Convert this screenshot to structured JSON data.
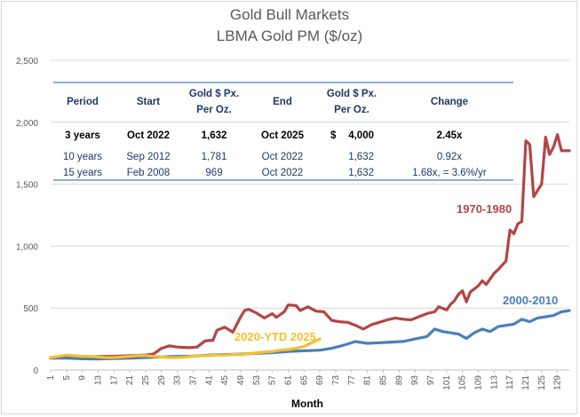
{
  "chart_data": {
    "type": "line",
    "title": "Gold Bull Markets",
    "subtitle": "LBMA Gold PM ($/oz)",
    "xlabel": "Month",
    "ylabel": "",
    "xlim": [
      1,
      132
    ],
    "ylim": [
      0,
      2500
    ],
    "y_ticks": [
      "0",
      "500",
      "1,000",
      "1,500",
      "2,000",
      "2,500"
    ],
    "x_ticks": [
      "1",
      "5",
      "9",
      "13",
      "17",
      "21",
      "25",
      "29",
      "33",
      "37",
      "41",
      "45",
      "49",
      "53",
      "57",
      "61",
      "65",
      "69",
      "73",
      "77",
      "81",
      "85",
      "89",
      "93",
      "97",
      "101",
      "105",
      "109",
      "113",
      "117",
      "121",
      "125",
      "129"
    ],
    "grid": "horizontal",
    "series": [
      {
        "name": "1970-1980",
        "label": "1970-1980",
        "color": "#b34545",
        "points": [
          [
            1,
            100
          ],
          [
            5,
            103
          ],
          [
            9,
            106
          ],
          [
            13,
            108
          ],
          [
            17,
            110
          ],
          [
            21,
            115
          ],
          [
            25,
            120
          ],
          [
            27,
            130
          ],
          [
            29,
            175
          ],
          [
            31,
            195
          ],
          [
            33,
            185
          ],
          [
            36,
            180
          ],
          [
            38,
            185
          ],
          [
            40,
            235
          ],
          [
            42,
            240
          ],
          [
            43,
            320
          ],
          [
            45,
            345
          ],
          [
            47,
            305
          ],
          [
            49,
            430
          ],
          [
            50,
            480
          ],
          [
            51,
            490
          ],
          [
            53,
            460
          ],
          [
            55,
            420
          ],
          [
            57,
            455
          ],
          [
            58,
            425
          ],
          [
            60,
            470
          ],
          [
            61,
            525
          ],
          [
            63,
            520
          ],
          [
            64,
            480
          ],
          [
            66,
            510
          ],
          [
            68,
            475
          ],
          [
            70,
            470
          ],
          [
            72,
            400
          ],
          [
            74,
            390
          ],
          [
            76,
            385
          ],
          [
            78,
            360
          ],
          [
            80,
            330
          ],
          [
            82,
            365
          ],
          [
            84,
            385
          ],
          [
            86,
            405
          ],
          [
            88,
            420
          ],
          [
            90,
            410
          ],
          [
            92,
            405
          ],
          [
            94,
            430
          ],
          [
            96,
            455
          ],
          [
            98,
            470
          ],
          [
            99,
            510
          ],
          [
            101,
            485
          ],
          [
            102,
            530
          ],
          [
            103,
            560
          ],
          [
            104,
            610
          ],
          [
            105,
            640
          ],
          [
            106,
            550
          ],
          [
            107,
            630
          ],
          [
            109,
            680
          ],
          [
            110,
            720
          ],
          [
            111,
            690
          ],
          [
            113,
            780
          ],
          [
            114,
            810
          ],
          [
            116,
            880
          ],
          [
            117,
            1130
          ],
          [
            118,
            1100
          ],
          [
            119,
            1180
          ],
          [
            120,
            1200
          ],
          [
            121,
            1850
          ],
          [
            122,
            1820
          ],
          [
            123,
            1400
          ],
          [
            124,
            1450
          ],
          [
            125,
            1500
          ],
          [
            126,
            1880
          ],
          [
            127,
            1740
          ],
          [
            128,
            1800
          ],
          [
            129,
            1900
          ],
          [
            130,
            1770
          ],
          [
            132,
            1770
          ]
        ]
      },
      {
        "name": "2000-2010",
        "label": "2000-2010",
        "color": "#4a7ebb",
        "points": [
          [
            1,
            95
          ],
          [
            5,
            95
          ],
          [
            9,
            90
          ],
          [
            13,
            88
          ],
          [
            17,
            92
          ],
          [
            21,
            95
          ],
          [
            25,
            100
          ],
          [
            29,
            105
          ],
          [
            33,
            110
          ],
          [
            37,
            112
          ],
          [
            41,
            120
          ],
          [
            45,
            125
          ],
          [
            49,
            128
          ],
          [
            53,
            135
          ],
          [
            57,
            140
          ],
          [
            61,
            150
          ],
          [
            65,
            155
          ],
          [
            69,
            160
          ],
          [
            72,
            175
          ],
          [
            75,
            200
          ],
          [
            78,
            230
          ],
          [
            81,
            215
          ],
          [
            84,
            220
          ],
          [
            87,
            225
          ],
          [
            90,
            230
          ],
          [
            93,
            250
          ],
          [
            96,
            270
          ],
          [
            98,
            330
          ],
          [
            100,
            310
          ],
          [
            102,
            300
          ],
          [
            104,
            290
          ],
          [
            106,
            255
          ],
          [
            108,
            300
          ],
          [
            110,
            330
          ],
          [
            112,
            310
          ],
          [
            114,
            350
          ],
          [
            116,
            360
          ],
          [
            118,
            370
          ],
          [
            120,
            410
          ],
          [
            122,
            390
          ],
          [
            124,
            420
          ],
          [
            126,
            430
          ],
          [
            128,
            440
          ],
          [
            130,
            470
          ],
          [
            132,
            480
          ]
        ]
      },
      {
        "name": "2020-YTD 2025",
        "label": "2020-YTD 2025",
        "color": "#f2c12e",
        "points": [
          [
            1,
            100
          ],
          [
            3,
            110
          ],
          [
            5,
            120
          ],
          [
            7,
            115
          ],
          [
            9,
            110
          ],
          [
            11,
            110
          ],
          [
            13,
            105
          ],
          [
            15,
            100
          ],
          [
            17,
            100
          ],
          [
            19,
            105
          ],
          [
            21,
            110
          ],
          [
            23,
            115
          ],
          [
            25,
            115
          ],
          [
            27,
            110
          ],
          [
            29,
            105
          ],
          [
            31,
            100
          ],
          [
            33,
            100
          ],
          [
            35,
            105
          ],
          [
            37,
            110
          ],
          [
            39,
            115
          ],
          [
            41,
            115
          ],
          [
            43,
            120
          ],
          [
            45,
            120
          ],
          [
            47,
            125
          ],
          [
            49,
            125
          ],
          [
            51,
            130
          ],
          [
            53,
            140
          ],
          [
            55,
            145
          ],
          [
            57,
            150
          ],
          [
            59,
            160
          ],
          [
            61,
            165
          ],
          [
            63,
            175
          ],
          [
            65,
            190
          ],
          [
            67,
            220
          ],
          [
            69,
            250
          ]
        ]
      }
    ]
  },
  "table": {
    "headers": [
      {
        "col": "period",
        "lines": [
          "Period"
        ]
      },
      {
        "col": "start",
        "lines": [
          "Start"
        ]
      },
      {
        "col": "start_px",
        "lines": [
          "Gold $ Px.",
          "Per Oz."
        ]
      },
      {
        "col": "end",
        "lines": [
          "End"
        ]
      },
      {
        "col": "end_px",
        "lines": [
          "Gold $ Px.",
          "Per Oz."
        ]
      },
      {
        "col": "change",
        "lines": [
          "Change"
        ]
      }
    ],
    "rows": [
      {
        "bold": true,
        "period": "3 years",
        "start": "Oct 2022",
        "start_px": "1,632",
        "end": "Oct 2025",
        "end_currency": "$",
        "end_px": "4,000",
        "change": "2.45x"
      },
      {
        "bold": false,
        "period": "10 years",
        "start": "Sep 2012",
        "start_px": "1,781",
        "end": "Oct 2022",
        "end_currency": "",
        "end_px": "1,632",
        "change": "0.92x"
      },
      {
        "bold": false,
        "period": "15 years",
        "start": "Feb 2008",
        "start_px": "969",
        "end": "Oct 2022",
        "end_currency": "",
        "end_px": "1,632",
        "change": "1.68x, = 3.6%/yr"
      }
    ]
  }
}
